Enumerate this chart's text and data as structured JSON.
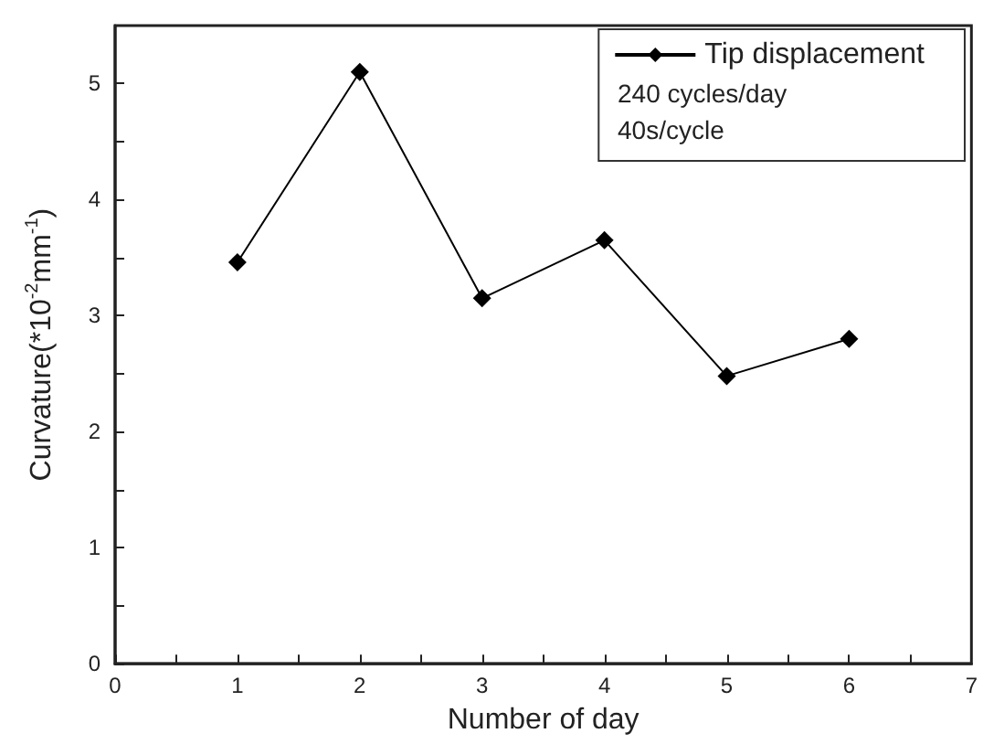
{
  "chart_data": {
    "type": "line",
    "xlabel": "Number of day",
    "ylabel": "Curvature(*10$^{-2}$mm$^{-1}$)",
    "x": [
      1,
      2,
      3,
      4,
      5,
      6
    ],
    "series": [
      {
        "name": "Tip displacement",
        "color": "#000000",
        "values": [
          3.46,
          5.1,
          3.15,
          3.65,
          2.48,
          2.8
        ]
      }
    ],
    "xlim": [
      0,
      7
    ],
    "xticks": [
      0,
      1,
      2,
      3,
      4,
      5,
      6,
      7
    ],
    "ylim": [
      0,
      5.5
    ],
    "yticks": [
      0,
      1,
      2,
      3,
      4,
      5
    ],
    "annotations": [
      "240 cycles/day",
      "40s/cycle"
    ],
    "legend": "top right",
    "marker": "diamond",
    "line_style": "solid",
    "grid": false
  }
}
